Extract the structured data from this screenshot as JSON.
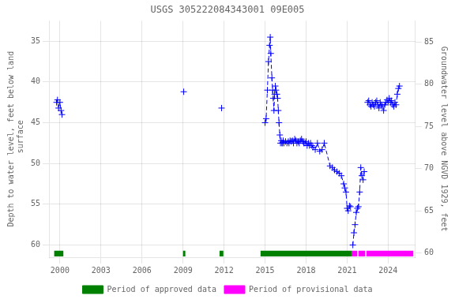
{
  "chart_data": {
    "type": "line",
    "title": "USGS 305222084343001 09E005",
    "ylabel": "Depth to water level, feet below land\n surface",
    "y2label": "Groundwater level above NGVD 1929, feet",
    "xlim": [
      1999.2,
      2026.0
    ],
    "ylim": [
      61.5,
      32.5
    ],
    "y2lim": [
      59.5,
      87.5
    ],
    "xticks": [
      2000,
      2003,
      2006,
      2009,
      2012,
      2015,
      2018,
      2021,
      2024
    ],
    "yticks": [
      35,
      40,
      45,
      50,
      55,
      60
    ],
    "y2ticks": [
      60,
      65,
      70,
      75,
      80,
      85
    ],
    "grid": true,
    "legend": "bottom",
    "series": [
      {
        "color": "#0000ff",
        "marker": "plus",
        "line_style": "dashed",
        "x": [
          1999.75,
          1999.82,
          1999.9,
          2000.0,
          2000.08,
          2000.15
        ],
        "values": [
          42.5,
          42.2,
          43.2,
          42.5,
          43.5,
          44.0
        ]
      },
      {
        "color": "#0000ff",
        "marker": "plus",
        "line_style": "dashed",
        "x": [
          2009.05
        ],
        "values": [
          41.2
        ]
      },
      {
        "color": "#0000ff",
        "marker": "plus",
        "line_style": "dashed",
        "x": [
          2011.82
        ],
        "values": [
          43.2
        ]
      },
      {
        "color": "#0000ff",
        "marker": "plus",
        "line_style": "dashed",
        "x": [
          2015.0,
          2015.08,
          2015.17,
          2015.25,
          2015.33,
          2015.38,
          2015.42,
          2015.5,
          2015.55,
          2015.6,
          2015.65,
          2015.7,
          2015.75,
          2015.8,
          2015.87,
          2015.92,
          2015.97,
          2016.02,
          2016.08,
          2016.13,
          2016.18,
          2016.23,
          2016.28,
          2016.33,
          2016.38,
          2016.5,
          2016.6,
          2016.7,
          2016.75,
          2016.83,
          2016.92,
          2017.0,
          2017.08,
          2017.17,
          2017.25,
          2017.33,
          2017.42,
          2017.5,
          2017.58,
          2017.67,
          2017.75,
          2017.83,
          2017.92,
          2018.0,
          2018.08,
          2018.17,
          2018.25,
          2018.33,
          2018.42,
          2018.5,
          2018.67,
          2018.83,
          2019.0,
          2019.17,
          2019.33,
          2019.75,
          2019.92,
          2020.08,
          2020.25,
          2020.42,
          2020.58,
          2020.75,
          2020.83,
          2020.92,
          2021.0,
          2021.08,
          2021.17,
          2021.25
        ],
        "values": [
          45.0,
          44.5,
          41.0,
          37.5,
          35.5,
          34.5,
          36.5,
          39.5,
          41.0,
          42.0,
          43.5,
          41.5,
          40.5,
          41.0,
          41.5,
          42.0,
          43.5,
          45.0,
          46.5,
          47.5,
          47.2,
          47.5,
          47.5,
          47.2,
          47.5,
          47.3,
          47.5,
          47.3,
          47.5,
          47.2,
          47.3,
          47.2,
          47.5,
          47.0,
          47.2,
          47.5,
          47.3,
          47.5,
          47.2,
          47.0,
          47.3,
          47.5,
          47.5,
          47.3,
          47.8,
          47.5,
          47.8,
          47.5,
          47.8,
          48.0,
          48.3,
          47.5,
          48.5,
          48.3,
          47.5,
          50.3,
          50.5,
          50.8,
          51.0,
          51.2,
          51.5,
          52.5,
          53.0,
          53.5,
          55.5,
          55.8,
          55.2,
          55.3
        ]
      },
      {
        "color": "#0000ff",
        "marker": "plus",
        "line_style": "dashed",
        "x": [
          2021.42,
          2021.5,
          2021.58,
          2021.67,
          2021.75,
          2021.83,
          2021.92,
          2022.0,
          2022.08,
          2022.17,
          2022.25
        ],
        "values": [
          60.0,
          58.5,
          57.5,
          56.0,
          55.5,
          55.3,
          53.5,
          50.5,
          51.5,
          52.0,
          51.0
        ]
      },
      {
        "color": "#0000ff",
        "marker": "plus",
        "line_style": "dashed",
        "x": [
          2022.5,
          2022.58,
          2022.67,
          2022.75,
          2022.83,
          2022.92,
          2023.0,
          2023.08,
          2023.17,
          2023.25,
          2023.33,
          2023.42,
          2023.5,
          2023.58,
          2023.67,
          2023.75,
          2023.83,
          2023.92,
          2024.0,
          2024.08,
          2024.17,
          2024.25,
          2024.33,
          2024.42,
          2024.5,
          2024.58,
          2024.67,
          2024.75,
          2024.83
        ],
        "values": [
          42.5,
          42.3,
          42.8,
          43.0,
          42.5,
          42.8,
          43.0,
          42.5,
          42.3,
          42.8,
          43.2,
          42.5,
          42.8,
          43.0,
          43.5,
          42.8,
          42.5,
          42.2,
          42.5,
          42.0,
          42.5,
          42.3,
          42.8,
          43.0,
          42.5,
          42.8,
          41.5,
          40.8,
          40.5
        ]
      },
      {
        "name": "Period of approved data",
        "type": "band",
        "color": "#008000",
        "periods": [
          [
            1999.58,
            2000.25
          ],
          [
            2009.0,
            2009.17
          ],
          [
            2011.67,
            2011.95
          ],
          [
            2014.67,
            2021.33
          ]
        ],
        "y_range": [
          60.7,
          61.4
        ]
      },
      {
        "name": "Period of provisional data",
        "type": "band",
        "color": "#ff00ff",
        "periods": [
          [
            2021.33,
            2021.75
          ],
          [
            2021.83,
            2022.33
          ],
          [
            2022.42,
            2025.83
          ]
        ],
        "y_range": [
          60.7,
          61.4
        ]
      }
    ]
  }
}
